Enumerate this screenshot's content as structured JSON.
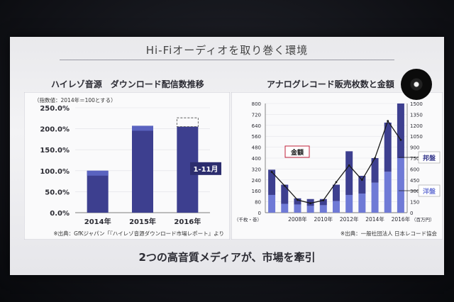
{
  "slide": {
    "title": "Hi-Fiオーディオを取り巻く環境",
    "footer": "2つの高音質メディアが、市場を牽引"
  },
  "chart_data": [
    {
      "type": "bar",
      "title": "ハイレゾ音源　ダウンロード配信数推移",
      "subtitle": "（指数値：2014年＝100とする）",
      "categories": [
        "2014年",
        "2015年",
        "2016年"
      ],
      "y_ticks": [
        "0.0%",
        "50.0%",
        "100.0%",
        "150.0%",
        "200.0%",
        "250.0%"
      ],
      "ylim": [
        0,
        250
      ],
      "series": [
        {
          "values": [
            100,
            207,
            205
          ]
        },
        {
          "values": [
            0,
            0,
            21
          ]
        }
      ],
      "annotation": "1-11月",
      "source": "※出典：GfKジャパン「『ハイレゾ音源ダウンロード市場レポート』より",
      "colors": {
        "bar": "#3d3f8f",
        "bar_top": "#5a63c0",
        "bar_dark": "#2c2d6e"
      }
    },
    {
      "type": "bar",
      "title": "アナログレコード販売枚数と金額",
      "categories": [
        "2006",
        "2007",
        "2008",
        "2009",
        "2010",
        "2011",
        "2012",
        "2013",
        "2014",
        "2015",
        "2016"
      ],
      "x_tick_labels": [
        "2008年",
        "2010年",
        "2012年",
        "2014年",
        "2016年"
      ],
      "y_left_ticks": [
        "0",
        "80",
        "160",
        "240",
        "320",
        "400",
        "480",
        "560",
        "640",
        "720",
        "800"
      ],
      "y_left_label": "（千枚・巻）",
      "y_right_ticks": [
        "0",
        "150",
        "300",
        "450",
        "600",
        "750",
        "900",
        "1050",
        "1200",
        "1350",
        "1500"
      ],
      "y_right_label": "（百万円）",
      "ylim": [
        0,
        800
      ],
      "series": [
        {
          "name": "洋盤",
          "values": [
            130,
            65,
            60,
            50,
            55,
            85,
            130,
            140,
            220,
            300,
            400
          ]
        },
        {
          "name": "邦盤",
          "values": [
            185,
            140,
            45,
            50,
            45,
            120,
            320,
            130,
            180,
            360,
            400
          ]
        },
        {
          "name": "金額",
          "values": [
            560,
            370,
            175,
            130,
            170,
            420,
            650,
            450,
            750,
            1260,
            1000
          ]
        }
      ],
      "legend": [
        "邦盤",
        "洋盤"
      ],
      "line_label": "金額",
      "source": "※出典：一般社団法人 日本レコード協会",
      "colors": {
        "domestic": "#3d3f8f",
        "foreign": "#6f7ad6",
        "line": "#1a1a1a",
        "label_border": "#c0203a"
      }
    }
  ]
}
